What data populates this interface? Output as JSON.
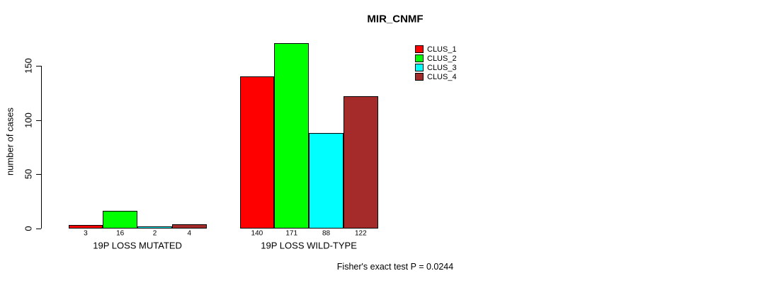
{
  "chart_data": {
    "type": "bar",
    "title": "MIR_CNMF",
    "ylabel": "number of cases",
    "xlabel": "",
    "ylim": [
      0,
      175
    ],
    "yticks": [
      0,
      50,
      100,
      150
    ],
    "grid": false,
    "legend_position": "top-right",
    "categories": [
      "19P LOSS MUTATED",
      "19P LOSS WILD-TYPE"
    ],
    "series": [
      {
        "name": "CLUS_1",
        "color": "#FF0000",
        "values": [
          3,
          140
        ]
      },
      {
        "name": "CLUS_2",
        "color": "#00FF00",
        "values": [
          16,
          171
        ]
      },
      {
        "name": "CLUS_3",
        "color": "#00FFFF",
        "values": [
          2,
          88
        ]
      },
      {
        "name": "CLUS_4",
        "color": "#A52A2A",
        "values": [
          4,
          122
        ]
      }
    ],
    "bar_value_labels_shown": true,
    "annotation": "Fisher's exact test P = 0.0244"
  }
}
